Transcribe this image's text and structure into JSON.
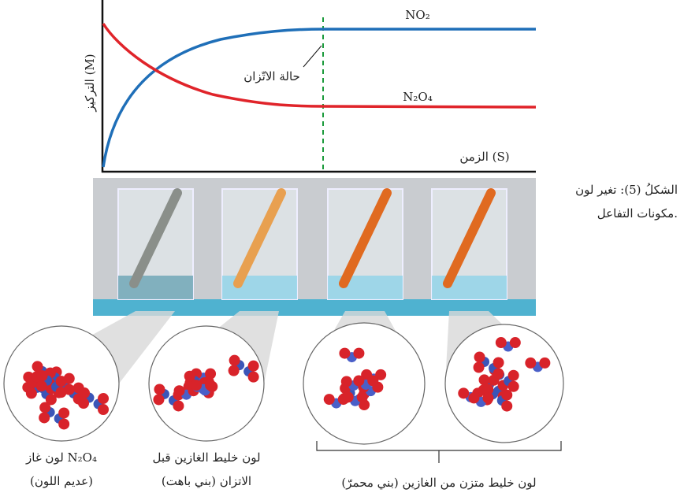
{
  "graph": {
    "y_label": "التركيز (M)",
    "x_label": "الزمن (S)",
    "no2_label": "NO₂",
    "n2o4_label": "N₂O₄",
    "equilibrium_label": "حالة الاتّزان"
  },
  "caption": {
    "line1": "الشكلُ (5): تغير لون",
    "line2": "مكونات التفاعل."
  },
  "labels": {
    "circle1": {
      "line1": "لون غاز N₂O₄",
      "line2": "(عديم اللون)"
    },
    "circle2": {
      "line1": "لون خليط الغازين قبل",
      "line2": "الاتزان (بني باهت)"
    },
    "circles34": "لون خليط متزن من الغازين (بني محمرّ)"
  }
}
